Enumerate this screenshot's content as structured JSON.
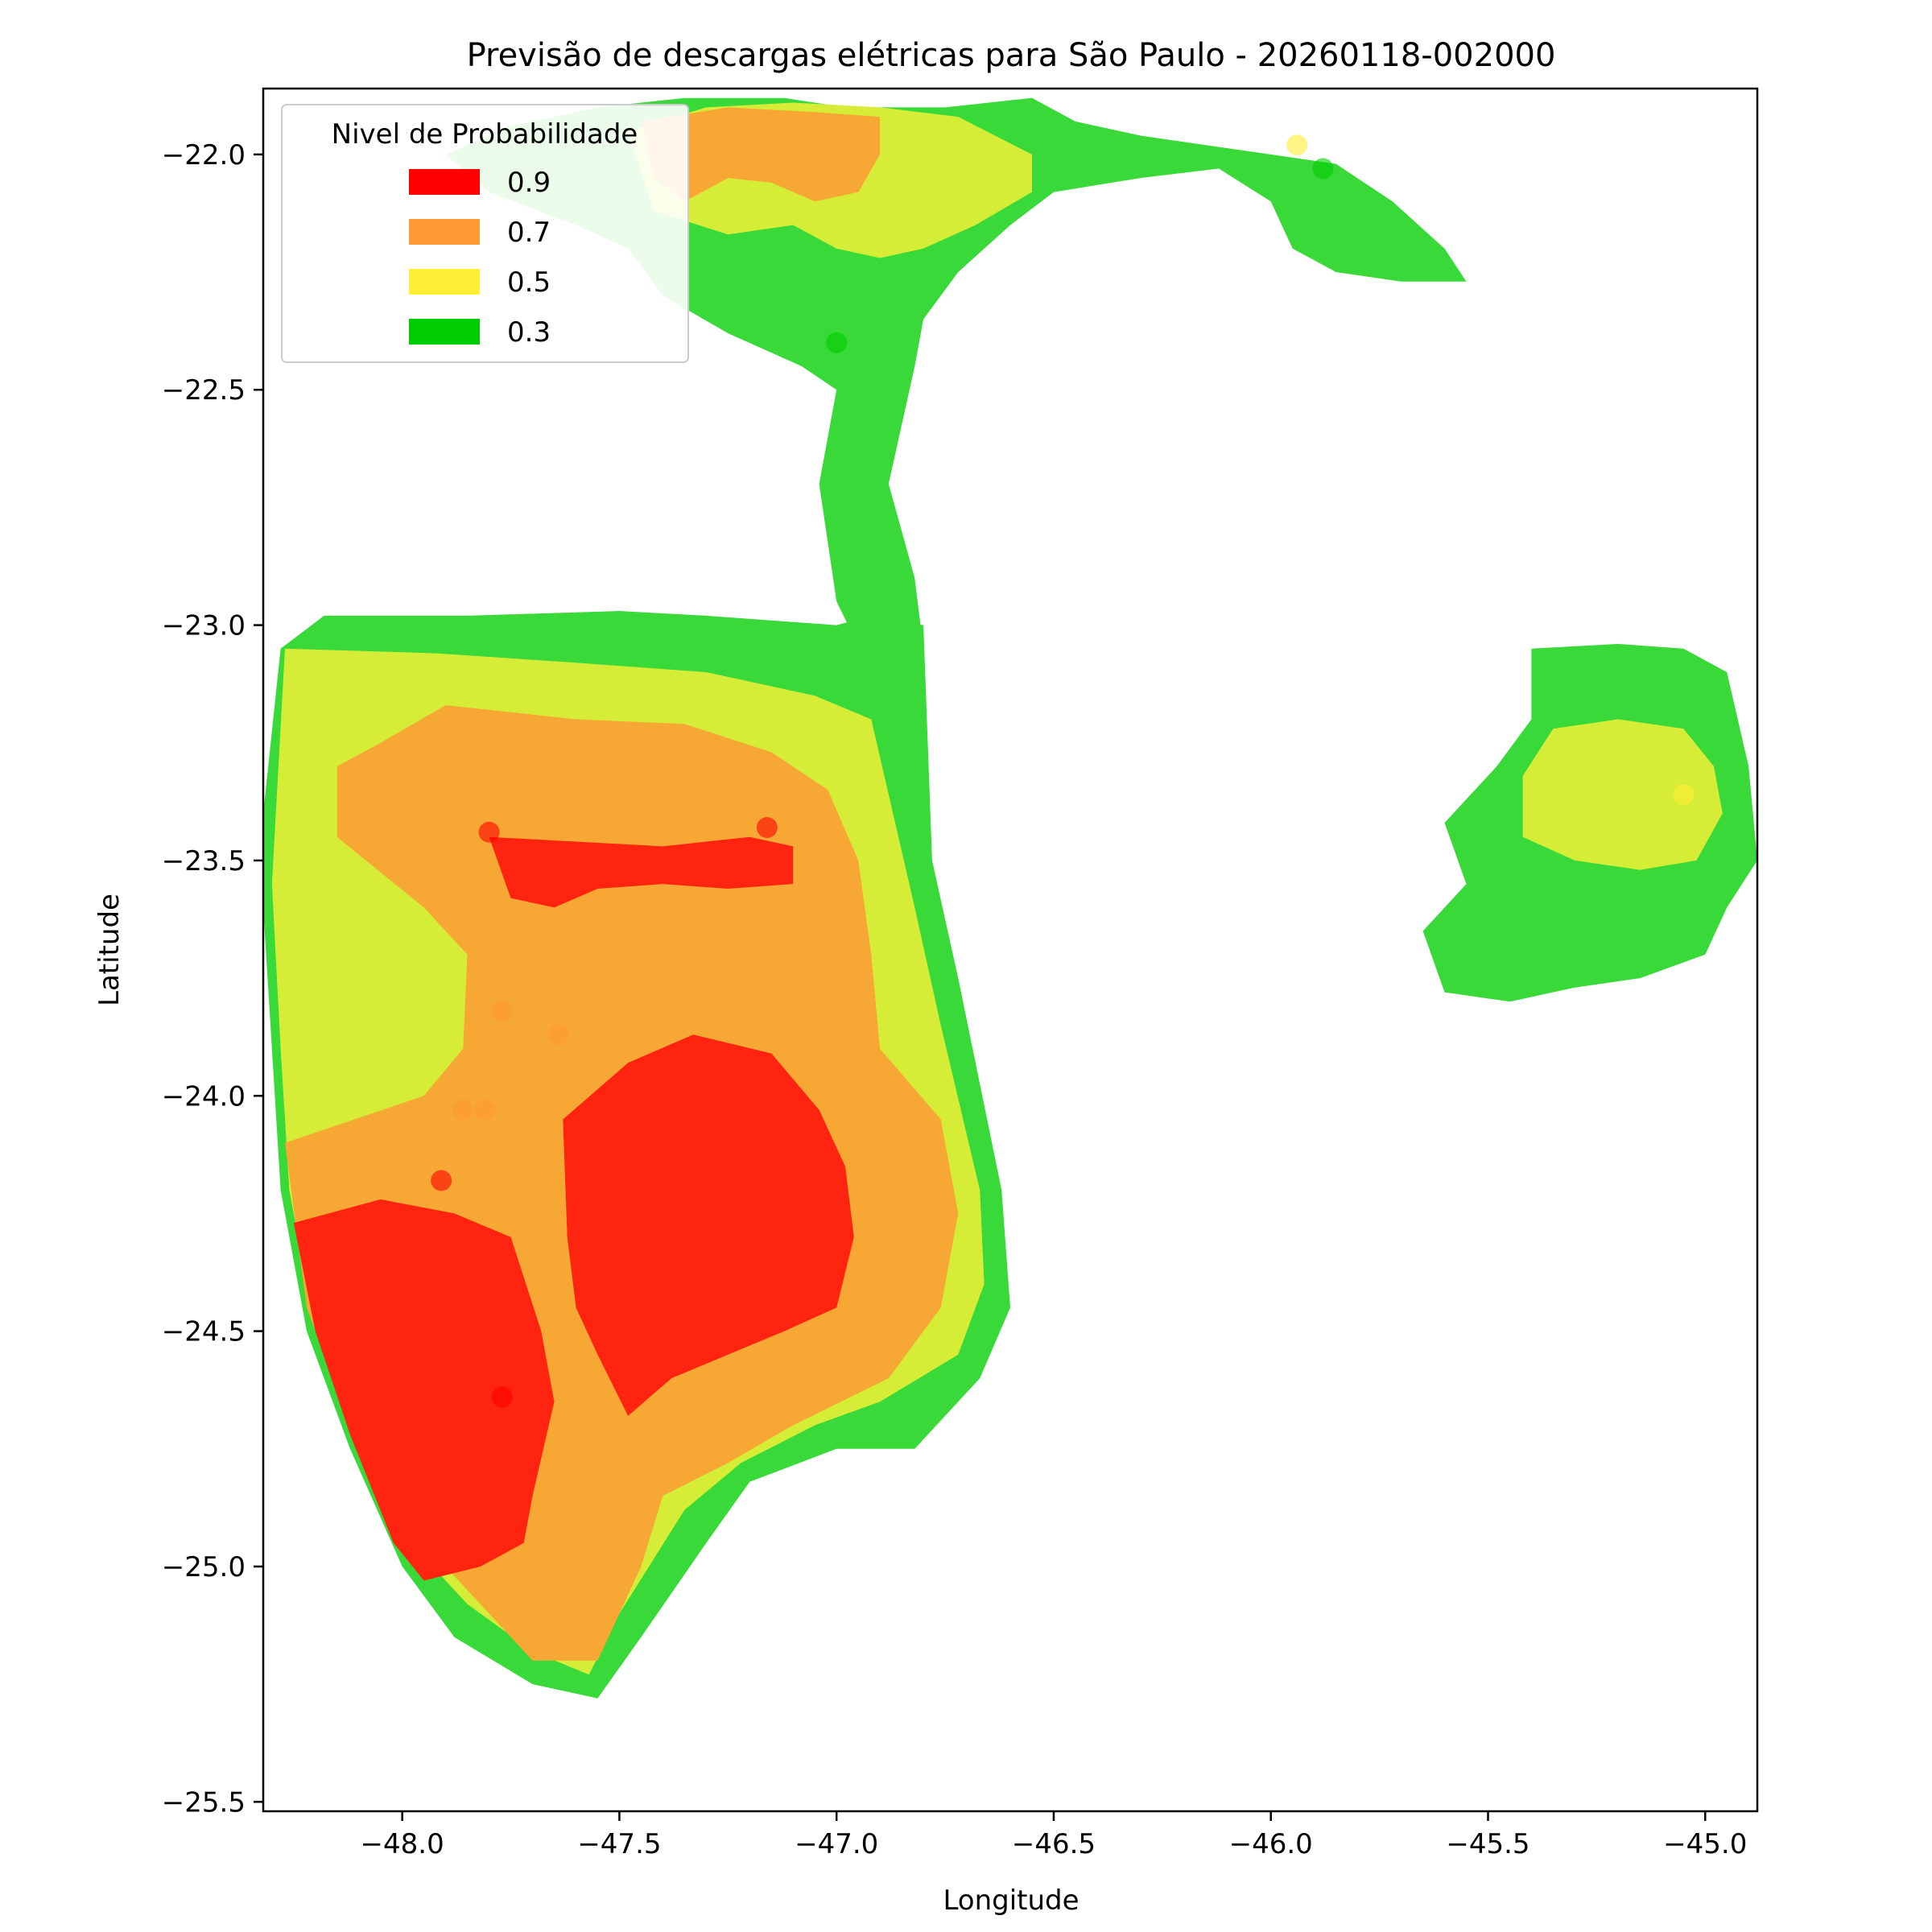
{
  "chart_data": {
    "type": "heatmap",
    "title": "Previsão de descargas elétricas para São Paulo - 20260118-002000",
    "xlabel": "Longitude",
    "ylabel": "Latitude",
    "xlim": [
      -48.32,
      -44.88
    ],
    "ylim": [
      -25.52,
      -21.86
    ],
    "xticks": [
      -48.0,
      -47.5,
      -47.0,
      -46.5,
      -46.0,
      -45.5,
      -45.0
    ],
    "xtick_labels": [
      "−48.0",
      "−47.5",
      "−47.0",
      "−46.5",
      "−46.0",
      "−45.5",
      "−45.0"
    ],
    "yticks": [
      -22.0,
      -22.5,
      -23.0,
      -23.5,
      -24.0,
      -24.5,
      -25.0,
      -25.5
    ],
    "ytick_labels": [
      "−22.0",
      "−22.5",
      "−23.0",
      "−23.5",
      "−24.0",
      "−24.5",
      "−25.0",
      "−25.5"
    ],
    "grid": false,
    "legend": {
      "title": "Nivel de Probabilidade",
      "placement": "upper-left",
      "entries": [
        {
          "label": "0.9",
          "color": "#ff0000"
        },
        {
          "label": "0.7",
          "color": "#ff9933"
        },
        {
          "label": "0.5",
          "color": "#ffee33"
        },
        {
          "label": "0.3",
          "color": "#00cc00"
        }
      ]
    },
    "fill_colors": {
      "0.9": "#ff240f",
      "0.7": "#f7a734",
      "0.5": "#d6ed38",
      "0.3": "#38d938"
    },
    "regions": [
      {
        "level": "0.3",
        "points": [
          [
            -48.32,
            -23.4
          ],
          [
            -48.28,
            -23.05
          ],
          [
            -48.18,
            -22.98
          ],
          [
            -47.85,
            -22.98
          ],
          [
            -47.5,
            -22.97
          ],
          [
            -47.3,
            -22.98
          ],
          [
            -47.0,
            -23.0
          ],
          [
            -46.92,
            -22.98
          ],
          [
            -46.8,
            -23.0
          ],
          [
            -46.78,
            -23.5
          ],
          [
            -46.72,
            -23.75
          ],
          [
            -46.62,
            -24.2
          ],
          [
            -46.6,
            -24.45
          ],
          [
            -46.67,
            -24.6
          ],
          [
            -46.82,
            -24.75
          ],
          [
            -47.0,
            -24.75
          ],
          [
            -47.2,
            -24.82
          ],
          [
            -47.3,
            -24.95
          ],
          [
            -47.45,
            -25.15
          ],
          [
            -47.55,
            -25.28
          ],
          [
            -47.7,
            -25.25
          ],
          [
            -47.88,
            -25.15
          ],
          [
            -48.0,
            -25.0
          ],
          [
            -48.12,
            -24.75
          ],
          [
            -48.22,
            -24.5
          ],
          [
            -48.28,
            -24.2
          ],
          [
            -48.3,
            -23.9
          ],
          [
            -48.32,
            -23.6
          ]
        ]
      },
      {
        "level": "0.5",
        "points": [
          [
            -48.27,
            -23.05
          ],
          [
            -47.92,
            -23.06
          ],
          [
            -47.6,
            -23.08
          ],
          [
            -47.3,
            -23.1
          ],
          [
            -47.05,
            -23.15
          ],
          [
            -46.92,
            -23.2
          ],
          [
            -46.82,
            -23.6
          ],
          [
            -46.76,
            -23.85
          ],
          [
            -46.67,
            -24.2
          ],
          [
            -46.66,
            -24.4
          ],
          [
            -46.72,
            -24.55
          ],
          [
            -46.9,
            -24.65
          ],
          [
            -47.05,
            -24.7
          ],
          [
            -47.22,
            -24.78
          ],
          [
            -47.35,
            -24.88
          ],
          [
            -47.5,
            -25.1
          ],
          [
            -47.57,
            -25.23
          ],
          [
            -47.7,
            -25.18
          ],
          [
            -47.85,
            -25.08
          ],
          [
            -47.98,
            -24.95
          ],
          [
            -48.1,
            -24.72
          ],
          [
            -48.2,
            -24.5
          ],
          [
            -48.26,
            -24.2
          ],
          [
            -48.28,
            -23.9
          ],
          [
            -48.3,
            -23.55
          ]
        ]
      },
      {
        "level": "0.7",
        "points": [
          [
            -48.15,
            -23.3
          ],
          [
            -48.05,
            -23.25
          ],
          [
            -47.9,
            -23.17
          ],
          [
            -47.6,
            -23.2
          ],
          [
            -47.35,
            -23.21
          ],
          [
            -47.15,
            -23.27
          ],
          [
            -47.02,
            -23.35
          ],
          [
            -46.95,
            -23.5
          ],
          [
            -46.92,
            -23.7
          ],
          [
            -46.9,
            -23.9
          ],
          [
            -46.76,
            -24.05
          ],
          [
            -46.72,
            -24.25
          ],
          [
            -46.76,
            -24.45
          ],
          [
            -46.88,
            -24.6
          ],
          [
            -47.1,
            -24.7
          ],
          [
            -47.25,
            -24.78
          ],
          [
            -47.4,
            -24.85
          ],
          [
            -47.45,
            -25.0
          ],
          [
            -47.55,
            -25.2
          ],
          [
            -47.7,
            -25.2
          ],
          [
            -47.85,
            -25.05
          ],
          [
            -48.0,
            -24.9
          ],
          [
            -48.12,
            -24.7
          ],
          [
            -48.22,
            -24.45
          ],
          [
            -48.27,
            -24.1
          ],
          [
            -47.95,
            -24.0
          ],
          [
            -47.86,
            -23.9
          ],
          [
            -47.85,
            -23.7
          ],
          [
            -47.95,
            -23.6
          ],
          [
            -48.15,
            -23.45
          ]
        ]
      },
      {
        "level": "0.9",
        "points": [
          [
            -48.25,
            -24.27
          ],
          [
            -48.05,
            -24.22
          ],
          [
            -47.88,
            -24.25
          ],
          [
            -47.75,
            -24.3
          ],
          [
            -47.68,
            -24.5
          ],
          [
            -47.65,
            -24.65
          ],
          [
            -47.7,
            -24.85
          ],
          [
            -47.72,
            -24.95
          ],
          [
            -47.82,
            -25.0
          ],
          [
            -47.95,
            -25.03
          ],
          [
            -48.02,
            -24.95
          ],
          [
            -48.12,
            -24.72
          ],
          [
            -48.2,
            -24.5
          ]
        ]
      },
      {
        "level": "0.9",
        "points": [
          [
            -47.63,
            -24.05
          ],
          [
            -47.48,
            -23.93
          ],
          [
            -47.33,
            -23.87
          ],
          [
            -47.15,
            -23.91
          ],
          [
            -47.04,
            -24.03
          ],
          [
            -46.98,
            -24.15
          ],
          [
            -46.96,
            -24.3
          ],
          [
            -47.0,
            -24.45
          ],
          [
            -47.12,
            -24.5
          ],
          [
            -47.25,
            -24.55
          ],
          [
            -47.38,
            -24.6
          ],
          [
            -47.48,
            -24.68
          ],
          [
            -47.55,
            -24.55
          ],
          [
            -47.6,
            -24.45
          ],
          [
            -47.62,
            -24.3
          ]
        ]
      },
      {
        "level": "0.9",
        "points": [
          [
            -47.8,
            -23.45
          ],
          [
            -47.6,
            -23.46
          ],
          [
            -47.4,
            -23.47
          ],
          [
            -47.2,
            -23.45
          ],
          [
            -47.1,
            -23.47
          ],
          [
            -47.1,
            -23.55
          ],
          [
            -47.25,
            -23.56
          ],
          [
            -47.4,
            -23.55
          ],
          [
            -47.55,
            -23.56
          ],
          [
            -47.65,
            -23.6
          ],
          [
            -47.75,
            -23.58
          ]
        ]
      },
      {
        "level": "0.3",
        "points": [
          [
            -47.9,
            -22.0
          ],
          [
            -47.75,
            -21.94
          ],
          [
            -47.55,
            -21.9
          ],
          [
            -47.35,
            -21.88
          ],
          [
            -47.12,
            -21.88
          ],
          [
            -46.98,
            -21.9
          ],
          [
            -46.75,
            -21.9
          ],
          [
            -46.55,
            -21.88
          ],
          [
            -46.45,
            -21.93
          ],
          [
            -46.3,
            -21.96
          ],
          [
            -46.15,
            -21.98
          ],
          [
            -46.0,
            -22.0
          ],
          [
            -45.85,
            -22.02
          ],
          [
            -45.72,
            -22.1
          ],
          [
            -45.6,
            -22.2
          ],
          [
            -45.55,
            -22.27
          ],
          [
            -45.7,
            -22.27
          ],
          [
            -45.85,
            -22.25
          ],
          [
            -45.95,
            -22.2
          ],
          [
            -46.0,
            -22.1
          ],
          [
            -46.12,
            -22.03
          ],
          [
            -46.3,
            -22.05
          ],
          [
            -46.5,
            -22.08
          ],
          [
            -46.6,
            -22.15
          ],
          [
            -46.72,
            -22.25
          ],
          [
            -46.8,
            -22.35
          ],
          [
            -46.82,
            -22.45
          ],
          [
            -46.88,
            -22.7
          ],
          [
            -46.82,
            -22.9
          ],
          [
            -46.8,
            -23.05
          ],
          [
            -46.92,
            -23.1
          ],
          [
            -47.0,
            -22.95
          ],
          [
            -47.04,
            -22.7
          ],
          [
            -47.0,
            -22.5
          ],
          [
            -47.08,
            -22.45
          ],
          [
            -47.25,
            -22.38
          ],
          [
            -47.4,
            -22.3
          ],
          [
            -47.48,
            -22.2
          ],
          [
            -47.6,
            -22.15
          ],
          [
            -47.8,
            -22.08
          ]
        ]
      },
      {
        "level": "0.5",
        "points": [
          [
            -47.48,
            -21.95
          ],
          [
            -47.3,
            -21.9
          ],
          [
            -47.1,
            -21.89
          ],
          [
            -46.9,
            -21.9
          ],
          [
            -46.72,
            -21.92
          ],
          [
            -46.55,
            -22.0
          ],
          [
            -46.55,
            -22.08
          ],
          [
            -46.68,
            -22.15
          ],
          [
            -46.8,
            -22.2
          ],
          [
            -46.9,
            -22.22
          ],
          [
            -47.0,
            -22.2
          ],
          [
            -47.1,
            -22.15
          ],
          [
            -47.25,
            -22.17
          ],
          [
            -47.42,
            -22.12
          ]
        ]
      },
      {
        "level": "0.7",
        "points": [
          [
            -47.45,
            -21.93
          ],
          [
            -47.25,
            -21.9
          ],
          [
            -47.05,
            -21.91
          ],
          [
            -46.9,
            -21.92
          ],
          [
            -46.9,
            -22.0
          ],
          [
            -46.95,
            -22.08
          ],
          [
            -47.05,
            -22.1
          ],
          [
            -47.15,
            -22.06
          ],
          [
            -47.25,
            -22.05
          ],
          [
            -47.35,
            -22.1
          ],
          [
            -47.42,
            -22.05
          ]
        ]
      },
      {
        "level": "0.3",
        "points": [
          [
            -45.4,
            -23.05
          ],
          [
            -45.2,
            -23.04
          ],
          [
            -45.05,
            -23.05
          ],
          [
            -44.95,
            -23.1
          ],
          [
            -44.9,
            -23.3
          ],
          [
            -44.88,
            -23.5
          ],
          [
            -44.95,
            -23.6
          ],
          [
            -45.0,
            -23.7
          ],
          [
            -45.15,
            -23.75
          ],
          [
            -45.3,
            -23.77
          ],
          [
            -45.45,
            -23.8
          ],
          [
            -45.6,
            -23.78
          ],
          [
            -45.65,
            -23.65
          ],
          [
            -45.55,
            -23.55
          ],
          [
            -45.6,
            -23.42
          ],
          [
            -45.48,
            -23.3
          ],
          [
            -45.4,
            -23.2
          ]
        ]
      },
      {
        "level": "0.5",
        "points": [
          [
            -45.35,
            -23.22
          ],
          [
            -45.2,
            -23.2
          ],
          [
            -45.05,
            -23.22
          ],
          [
            -44.98,
            -23.3
          ],
          [
            -44.96,
            -23.4
          ],
          [
            -45.02,
            -23.5
          ],
          [
            -45.15,
            -23.52
          ],
          [
            -45.3,
            -23.5
          ],
          [
            -45.42,
            -23.45
          ],
          [
            -45.42,
            -23.32
          ]
        ]
      }
    ],
    "points": [
      {
        "x": -47.8,
        "y": -23.44,
        "level": "0.9"
      },
      {
        "x": -47.16,
        "y": -23.43,
        "level": "0.9"
      },
      {
        "x": -47.91,
        "y": -24.18,
        "level": "0.9"
      },
      {
        "x": -47.77,
        "y": -24.64,
        "level": "0.9"
      },
      {
        "x": -47.77,
        "y": -23.82,
        "level": "0.7"
      },
      {
        "x": -47.64,
        "y": -23.87,
        "level": "0.7"
      },
      {
        "x": -47.86,
        "y": -24.03,
        "level": "0.7"
      },
      {
        "x": -47.81,
        "y": -24.03,
        "level": "0.7"
      },
      {
        "x": -47.0,
        "y": -22.4,
        "level": "0.3"
      },
      {
        "x": -45.94,
        "y": -21.98,
        "level": "0.5"
      },
      {
        "x": -45.88,
        "y": -22.03,
        "level": "0.3"
      },
      {
        "x": -45.05,
        "y": -23.36,
        "level": "0.5"
      }
    ]
  }
}
